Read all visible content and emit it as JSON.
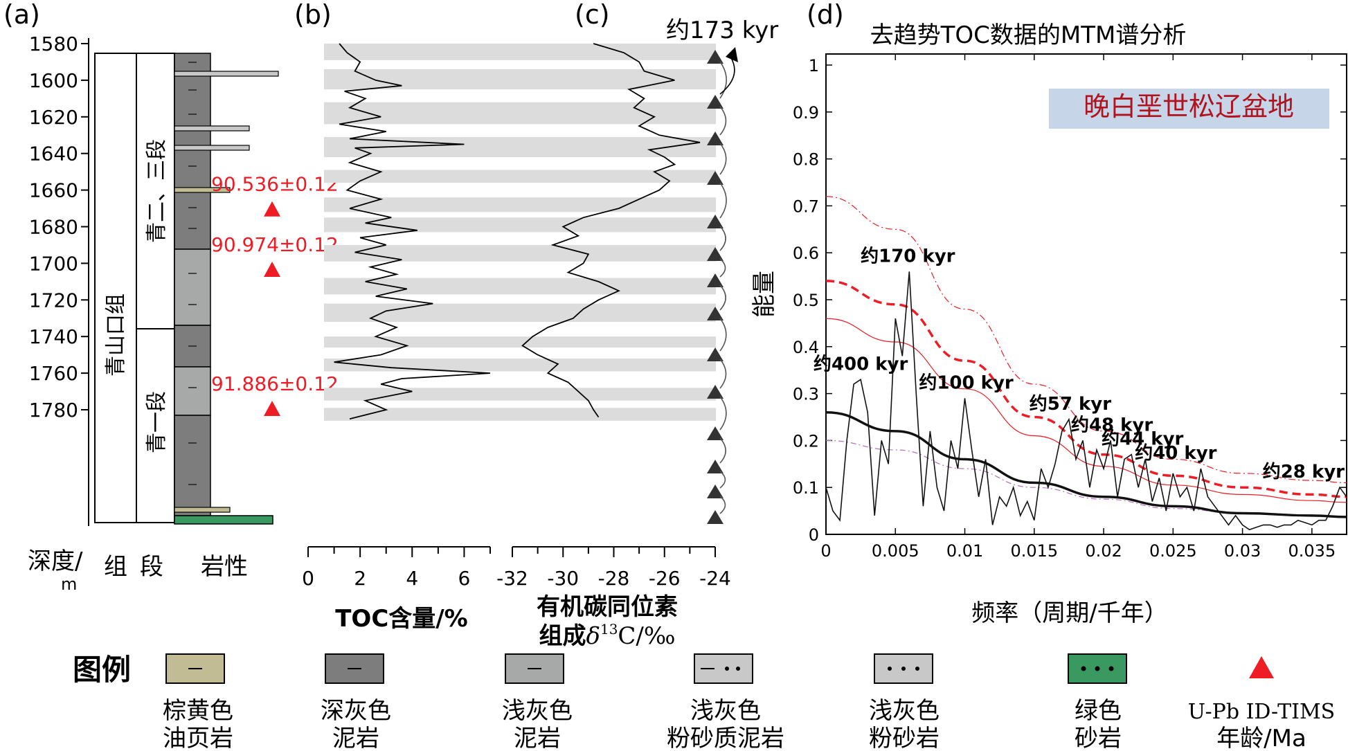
{
  "panel_labels": {
    "a": "(a)",
    "b": "(b)",
    "c": "(c)",
    "d": "(d)"
  },
  "colors": {
    "red": "#ee1c24",
    "bar_gray": "#dcdcdc",
    "dark_gray": "#7d7d7d",
    "light_gray": "#a7a9a8",
    "olive": "#c2bc95",
    "green": "#3a9960",
    "silt_gray": "#c8c8c8",
    "badge_bg": "#c6d5e8",
    "badge_text": "#b0131e"
  },
  "strat_column": {
    "depth_ticks": [
      "1580",
      "1600",
      "1620",
      "1640",
      "1660",
      "1680",
      "1700",
      "1720",
      "1740",
      "1760",
      "1780"
    ],
    "depth_header": "深度/",
    "depth_unit": "m",
    "formation_header": "组",
    "member_header": "段",
    "lithology_header": "岩性",
    "formation_name": "青山口组",
    "member_upper": "青二、三段",
    "member_lower": "青一段",
    "ages": [
      {
        "label": "90.536±0.12",
        "depth": 1671
      },
      {
        "label": "90.974±0.12",
        "depth": 1704
      },
      {
        "label": "91.886±0.12",
        "depth": 1780
      }
    ]
  },
  "toc_panel": {
    "xticks": [
      "0",
      "2",
      "4",
      "6"
    ],
    "xlabel": "TOC含量/%"
  },
  "d13c_panel": {
    "xticks": [
      "-32",
      "-30",
      "-28",
      "-26",
      "-24"
    ],
    "xlabel_line1": "有机碳同位素",
    "xlabel_line2_prefix": "组成",
    "xlabel_delta": "δ",
    "xlabel_sup": "13",
    "xlabel_suffix": "C/‰",
    "cycle_label": "约173 kyr"
  },
  "legend": {
    "title": "图例",
    "items": [
      {
        "line1": "棕黄色",
        "line2": "油页岩"
      },
      {
        "line1": "深灰色",
        "line2": "泥岩"
      },
      {
        "line1": "浅灰色",
        "line2": "泥岩"
      },
      {
        "line1": "浅灰色",
        "line2": "粉砂质泥岩"
      },
      {
        "line1": "浅灰色",
        "line2": "粉砂岩"
      },
      {
        "line1": "绿色",
        "line2": "砂岩"
      },
      {
        "line1": "U-Pb ID-TIMS",
        "line2": "年龄/Ma"
      }
    ]
  },
  "chart_data": [
    {
      "type": "line",
      "panel": "b",
      "xlabel": "TOC含量/%",
      "ylabel": "深度/m",
      "xlim": [
        0,
        7
      ],
      "ylim": [
        1578,
        1786
      ],
      "y_inverted": true,
      "series": [
        {
          "depth": [
            1580,
            1585,
            1590,
            1595,
            1600,
            1603,
            1606,
            1610,
            1615,
            1620,
            1624,
            1628,
            1632,
            1635,
            1637,
            1640,
            1645,
            1650,
            1655,
            1660,
            1665,
            1670,
            1675,
            1678,
            1682,
            1686,
            1690,
            1694,
            1698,
            1702,
            1706,
            1710,
            1714,
            1718,
            1722,
            1726,
            1730,
            1735,
            1740,
            1745,
            1750,
            1754,
            1757,
            1760,
            1763,
            1766,
            1770,
            1775,
            1780,
            1785
          ],
          "toc": [
            1.2,
            1.5,
            2.0,
            1.8,
            2.6,
            3.6,
            1.4,
            2.2,
            1.6,
            2.8,
            1.2,
            3.0,
            1.6,
            6.0,
            1.8,
            2.4,
            1.6,
            2.8,
            2.0,
            1.5,
            2.8,
            1.6,
            3.2,
            2.2,
            4.2,
            2.0,
            3.0,
            1.8,
            3.6,
            2.4,
            3.4,
            2.2,
            3.8,
            2.6,
            4.8,
            3.0,
            2.4,
            3.4,
            2.6,
            3.8,
            2.8,
            1.0,
            3.2,
            7.0,
            3.6,
            2.8,
            4.0,
            2.2,
            3.0,
            1.6
          ]
        }
      ]
    },
    {
      "type": "line",
      "panel": "c",
      "xlabel": "有机碳同位素组成δ13C/‰",
      "ylabel": "深度/m",
      "xlim": [
        -32,
        -24
      ],
      "ylim": [
        1578,
        1786
      ],
      "y_inverted": true,
      "series": [
        {
          "depth": [
            1580,
            1585,
            1590,
            1595,
            1600,
            1605,
            1610,
            1615,
            1620,
            1625,
            1630,
            1634,
            1638,
            1642,
            1646,
            1650,
            1655,
            1660,
            1665,
            1670,
            1675,
            1680,
            1685,
            1690,
            1695,
            1700,
            1705,
            1710,
            1715,
            1720,
            1725,
            1730,
            1735,
            1740,
            1745,
            1750,
            1755,
            1760,
            1765,
            1770,
            1775,
            1780,
            1784
          ],
          "d13c": [
            -28.8,
            -27.6,
            -27.0,
            -26.8,
            -25.6,
            -27.4,
            -26.8,
            -27.2,
            -26.4,
            -27.0,
            -26.2,
            -24.6,
            -26.6,
            -26.0,
            -25.6,
            -26.4,
            -25.8,
            -26.2,
            -27.0,
            -27.8,
            -29.2,
            -30.0,
            -29.4,
            -30.4,
            -29.0,
            -29.2,
            -29.8,
            -28.6,
            -27.8,
            -28.6,
            -29.2,
            -29.6,
            -30.6,
            -31.2,
            -31.6,
            -31.0,
            -30.2,
            -30.6,
            -29.8,
            -29.4,
            -29.0,
            -28.8,
            -28.6
          ]
        }
      ]
    },
    {
      "type": "line",
      "panel": "d",
      "title": "去趋势TOC数据的MTM谱分析",
      "xlabel": "频率（周期/千年）",
      "ylabel": "能量",
      "xlim": [
        0,
        0.0375
      ],
      "ylim": [
        0,
        1
      ],
      "xticks": [
        "0",
        "0.005",
        "0.01",
        "0.015",
        "0.02",
        "0.025",
        "0.03",
        "0.035"
      ],
      "yticks": [
        "0",
        "0.1",
        "0.2",
        "0.3",
        "0.4",
        "0.5",
        "0.6",
        "0.7",
        "0.8",
        "0.9",
        "1"
      ],
      "badge": "晚白垩世松辽盆地",
      "peak_labels": [
        {
          "label": "约170 kyr",
          "x": 0.0059,
          "y": 0.56
        },
        {
          "label": "约400 kyr",
          "x": 0.0025,
          "y": 0.33
        },
        {
          "label": "约100 kyr",
          "x": 0.0101,
          "y": 0.29
        },
        {
          "label": "约57 kyr",
          "x": 0.0176,
          "y": 0.245
        },
        {
          "label": "约48 kyr",
          "x": 0.0206,
          "y": 0.2
        },
        {
          "label": "约44 kyr",
          "x": 0.0228,
          "y": 0.17
        },
        {
          "label": "约40 kyr",
          "x": 0.0252,
          "y": 0.14
        },
        {
          "label": "约28 kyr",
          "x": 0.0372,
          "y": 0.1
        }
      ],
      "series": [
        {
          "role": "spectrum",
          "x": [
            0,
            0.0005,
            0.001,
            0.0015,
            0.002,
            0.0025,
            0.003,
            0.0035,
            0.004,
            0.0045,
            0.005,
            0.0055,
            0.006,
            0.0065,
            0.007,
            0.0075,
            0.008,
            0.0085,
            0.009,
            0.0095,
            0.01,
            0.0105,
            0.011,
            0.0115,
            0.012,
            0.0125,
            0.013,
            0.0135,
            0.014,
            0.0145,
            0.015,
            0.0155,
            0.016,
            0.0165,
            0.017,
            0.0175,
            0.018,
            0.0185,
            0.019,
            0.0195,
            0.02,
            0.0205,
            0.021,
            0.0215,
            0.022,
            0.0225,
            0.023,
            0.0235,
            0.024,
            0.0245,
            0.025,
            0.0255,
            0.026,
            0.0265,
            0.027,
            0.0275,
            0.028,
            0.0285,
            0.029,
            0.0295,
            0.03,
            0.0305,
            0.031,
            0.0315,
            0.032,
            0.0325,
            0.033,
            0.0335,
            0.034,
            0.0345,
            0.035,
            0.0355,
            0.036,
            0.0365,
            0.037,
            0.0375
          ],
          "y": [
            0.1,
            0.05,
            0.03,
            0.2,
            0.32,
            0.33,
            0.26,
            0.04,
            0.2,
            0.15,
            0.46,
            0.38,
            0.56,
            0.3,
            0.06,
            0.22,
            0.1,
            0.05,
            0.2,
            0.14,
            0.29,
            0.18,
            0.08,
            0.16,
            0.02,
            0.08,
            0.06,
            0.1,
            0.04,
            0.07,
            0.03,
            0.14,
            0.1,
            0.15,
            0.22,
            0.245,
            0.16,
            0.2,
            0.1,
            0.18,
            0.14,
            0.2,
            0.08,
            0.16,
            0.17,
            0.1,
            0.16,
            0.07,
            0.12,
            0.05,
            0.13,
            0.08,
            0.1,
            0.05,
            0.14,
            0.08,
            0.06,
            0.04,
            0.02,
            0.04,
            0.02,
            0.01,
            0.015,
            0.02,
            0.02,
            0.015,
            0.02,
            0.02,
            0.03,
            0.025,
            0.02,
            0.03,
            0.03,
            0.06,
            0.1,
            0.08
          ]
        },
        {
          "role": "robust-red-noise",
          "x": [
            0,
            0.005,
            0.01,
            0.015,
            0.02,
            0.025,
            0.03,
            0.035,
            0.0375
          ],
          "y": [
            0.26,
            0.22,
            0.16,
            0.11,
            0.08,
            0.06,
            0.045,
            0.04,
            0.037
          ]
        },
        {
          "role": "confidence-99",
          "x": [
            0,
            0.005,
            0.01,
            0.015,
            0.02,
            0.025,
            0.03,
            0.035,
            0.0375
          ],
          "y": [
            0.72,
            0.65,
            0.48,
            0.32,
            0.22,
            0.16,
            0.13,
            0.115,
            0.11
          ]
        },
        {
          "role": "confidence-95",
          "x": [
            0,
            0.005,
            0.01,
            0.015,
            0.02,
            0.025,
            0.03,
            0.035,
            0.0375
          ],
          "y": [
            0.54,
            0.49,
            0.37,
            0.25,
            0.17,
            0.125,
            0.1,
            0.085,
            0.08
          ]
        },
        {
          "role": "confidence-90",
          "x": [
            0,
            0.005,
            0.01,
            0.015,
            0.02,
            0.025,
            0.03,
            0.035,
            0.0375
          ],
          "y": [
            0.46,
            0.41,
            0.31,
            0.21,
            0.145,
            0.105,
            0.085,
            0.072,
            0.068
          ]
        },
        {
          "role": "confidence-50",
          "x": [
            0,
            0.005,
            0.01,
            0.015,
            0.02,
            0.025,
            0.03,
            0.035,
            0.0375
          ],
          "y": [
            0.2,
            0.18,
            0.14,
            0.1,
            0.075,
            0.055,
            0.045,
            0.04,
            0.038
          ]
        }
      ]
    }
  ]
}
